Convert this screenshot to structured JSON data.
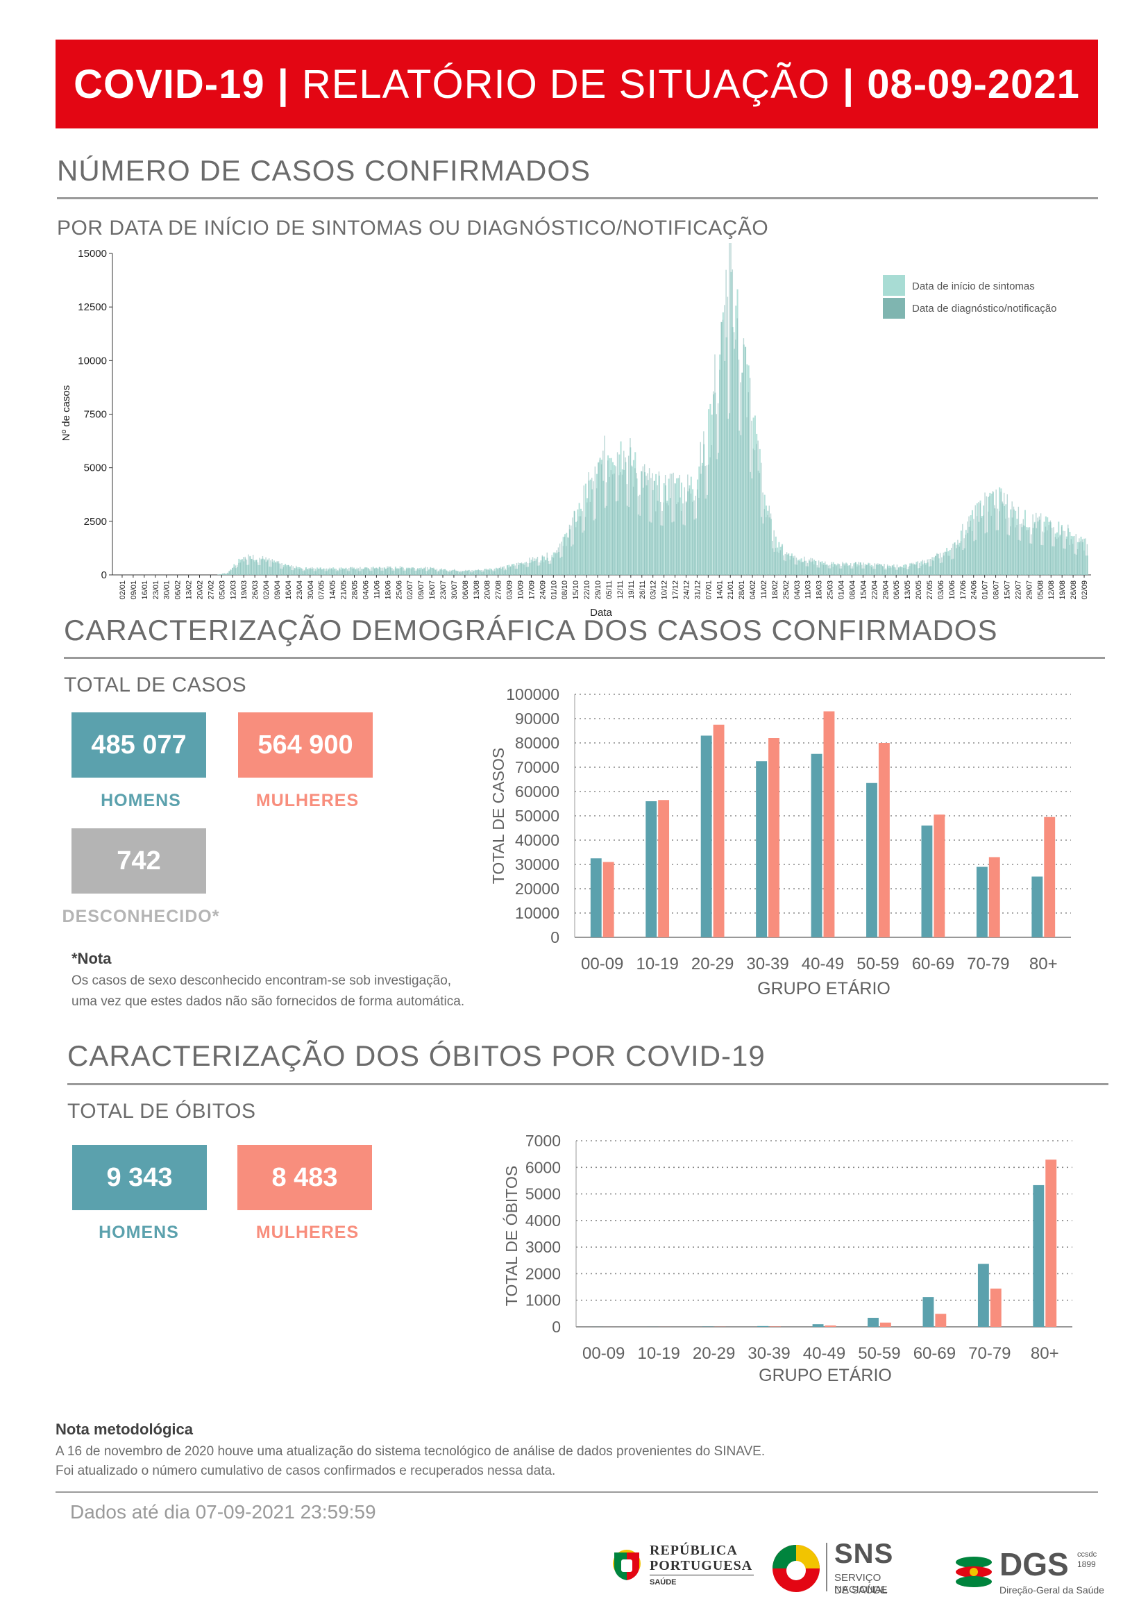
{
  "header": {
    "title_bold": "COVID-19",
    "title_mid": "RELATÓRIO DE SITUAÇÃO",
    "title_date": "08-09-2021",
    "divider": "|"
  },
  "section1": {
    "title": "NÚMERO DE CASOS CONFIRMADOS",
    "subtitle": "POR DATA DE INÍCIO DE SINTOMAS OU DIAGNÓSTICO/NOTIFICAÇÃO"
  },
  "section2": {
    "title": "CARACTERIZAÇÃO DEMOGRÁFICA DOS CASOS CONFIRMADOS",
    "subtitle": "TOTAL DE CASOS",
    "men_value": "485 077",
    "men_label": "HOMENS",
    "women_value": "564 900",
    "women_label": "MULHERES",
    "unknown_value": "742",
    "unknown_label": "DESCONHECIDO*",
    "note_title": "*Nota",
    "note_line1": "Os casos de sexo desconhecido encontram-se sob investigação,",
    "note_line2": "uma vez que estes dados não são fornecidos de forma automática."
  },
  "section3": {
    "title": "CARACTERIZAÇÃO DOS ÓBITOS POR COVID-19",
    "subtitle": "TOTAL DE ÓBITOS",
    "men_value": "9 343",
    "men_label": "HOMENS",
    "women_value": "8 483",
    "women_label": "MULHERES"
  },
  "methodology": {
    "title": "Nota metodológica",
    "line1": "A 16 de novembro de 2020 houve uma atualização do sistema tecnológico de análise de dados provenientes do SINAVE.",
    "line2": "Foi atualizado o número cumulativo de casos confirmados e recuperados nessa data."
  },
  "footer": {
    "data_until": "Dados até dia 07-09-2021 23:59:59",
    "rp_line1": "REPÚBLICA",
    "rp_line2": "PORTUGUESA",
    "rp_line3": "SAÚDE",
    "sns_name": "SNS",
    "sns_line1": "SERVIÇO NACIONAL",
    "sns_line2": "DE SAÚDE",
    "dgs_name": "DGS",
    "dgs_ccsdc": "ccsdc",
    "dgs_year": "1899",
    "dgs_sub": "Direção-Geral da Saúde"
  },
  "colors": {
    "red": "#e30613",
    "teal": "#5ba1ad",
    "salmon": "#f88e7d",
    "grey": "#b4b4b4",
    "timeline_light": "#a8dcd4",
    "timeline_dark": "#7fb5b0"
  },
  "chart_data": [
    {
      "type": "bar",
      "xlabel": "Data",
      "ylabel": "Nº de casos",
      "ylim": [
        0,
        15000
      ],
      "yticks": [
        0,
        2500,
        5000,
        7500,
        10000,
        12500,
        15000
      ],
      "legend_position": "top-right",
      "series": [
        {
          "name": "Data de início de sintomas"
        },
        {
          "name": "Data de diagnóstico/notificação"
        }
      ],
      "x_tick_labels": [
        "02/01",
        "09/01",
        "16/01",
        "23/01",
        "30/01",
        "06/02",
        "13/02",
        "20/02",
        "27/02",
        "05/03",
        "12/03",
        "19/03",
        "26/03",
        "02/04",
        "09/04",
        "16/04",
        "23/04",
        "30/04",
        "07/05",
        "14/05",
        "21/05",
        "28/05",
        "04/06",
        "11/06",
        "18/06",
        "25/06",
        "02/07",
        "09/07",
        "16/07",
        "23/07",
        "30/07",
        "06/08",
        "13/08",
        "20/08",
        "27/08",
        "03/09",
        "10/09",
        "17/09",
        "24/09",
        "01/10",
        "08/10",
        "15/10",
        "22/10",
        "29/10",
        "05/11",
        "12/11",
        "19/11",
        "26/11",
        "03/12",
        "10/12",
        "17/12",
        "24/12",
        "31/12",
        "07/01",
        "14/01",
        "21/01",
        "28/01",
        "04/02",
        "11/02",
        "18/02",
        "25/02",
        "04/03",
        "11/03",
        "18/03",
        "25/03",
        "01/04",
        "08/04",
        "15/04",
        "22/04",
        "29/04",
        "06/05",
        "13/05",
        "20/05",
        "27/05",
        "03/06",
        "10/06",
        "17/06",
        "24/06",
        "01/07",
        "08/07",
        "15/07",
        "22/07",
        "29/07",
        "05/08",
        "12/08",
        "19/08",
        "26/08",
        "02/09"
      ],
      "weekly_approx": [
        0,
        0,
        0,
        0,
        0,
        0,
        0,
        0,
        0,
        0,
        100,
        700,
        800,
        750,
        600,
        450,
        350,
        300,
        300,
        300,
        300,
        300,
        300,
        320,
        330,
        330,
        330,
        320,
        300,
        250,
        230,
        200,
        200,
        250,
        300,
        380,
        500,
        650,
        750,
        900,
        1500,
        2500,
        3600,
        4500,
        5500,
        5800,
        5200,
        4500,
        4000,
        3800,
        4200,
        3800,
        4500,
        6500,
        10000,
        13000,
        10500,
        7000,
        3500,
        1500,
        1000,
        750,
        650,
        550,
        500,
        500,
        500,
        500,
        450,
        400,
        400,
        450,
        550,
        700,
        1000,
        1300,
        2200,
        2800,
        3400,
        3500,
        3000,
        2600,
        2400,
        2300,
        2200,
        2000,
        1500
      ]
    },
    {
      "type": "bar",
      "xlabel": "GRUPO ETÁRIO",
      "ylabel": "TOTAL DE CASOS",
      "ylim": [
        0,
        100000
      ],
      "yticks": [
        0,
        10000,
        20000,
        30000,
        40000,
        50000,
        60000,
        70000,
        80000,
        90000,
        100000
      ],
      "categories": [
        "00-09",
        "10-19",
        "20-29",
        "30-39",
        "40-49",
        "50-59",
        "60-69",
        "70-79",
        "80+"
      ],
      "series": [
        {
          "name": "HOMENS",
          "values": [
            32500,
            56000,
            83000,
            72500,
            75500,
            63500,
            46000,
            29000,
            25000
          ]
        },
        {
          "name": "MULHERES",
          "values": [
            31000,
            56500,
            87500,
            82000,
            93000,
            80000,
            50500,
            33000,
            49500
          ]
        }
      ]
    },
    {
      "type": "bar",
      "xlabel": "GRUPO ETÁRIO",
      "ylabel": "TOTAL DE ÓBITOS",
      "ylim": [
        0,
        7000
      ],
      "yticks": [
        0,
        1000,
        2000,
        3000,
        4000,
        5000,
        6000,
        7000
      ],
      "categories": [
        "00-09",
        "10-19",
        "20-29",
        "30-39",
        "40-49",
        "50-59",
        "60-69",
        "70-79",
        "80+"
      ],
      "series": [
        {
          "name": "HOMENS",
          "values": [
            2,
            3,
            10,
            30,
            100,
            340,
            1120,
            2370,
            5330
          ]
        },
        {
          "name": "MULHERES",
          "values": [
            1,
            2,
            6,
            15,
            50,
            160,
            490,
            1440,
            6290
          ]
        }
      ]
    }
  ]
}
